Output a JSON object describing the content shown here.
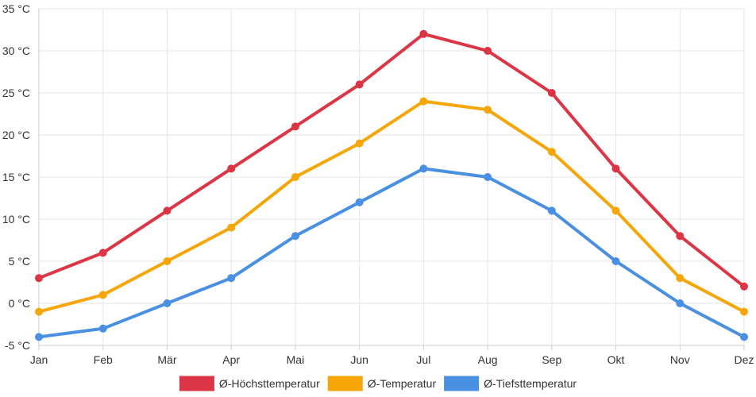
{
  "chart_data": {
    "type": "line",
    "categories": [
      "Jan",
      "Feb",
      "Mär",
      "Apr",
      "Mai",
      "Jun",
      "Jul",
      "Aug",
      "Sep",
      "Okt",
      "Nov",
      "Dez"
    ],
    "series": [
      {
        "name": "Ø-Höchsttemperatur",
        "color": "#dc3545",
        "values": [
          3,
          6,
          11,
          16,
          21,
          26,
          32,
          30,
          25,
          16,
          8,
          2
        ]
      },
      {
        "name": "Ø-Temperatur",
        "color": "#f6a609",
        "values": [
          -1,
          1,
          5,
          9,
          15,
          19,
          24,
          23,
          18,
          11,
          3,
          -1
        ]
      },
      {
        "name": "Ø-Tiefsttemperatur",
        "color": "#4a90e2",
        "values": [
          -4,
          -3,
          0,
          3,
          8,
          12,
          16,
          15,
          11,
          5,
          0,
          -4
        ]
      }
    ],
    "yticks": [
      "-5 °C",
      "0 °C",
      "5 °C",
      "10 °C",
      "15 °C",
      "20 °C",
      "25 °C",
      "30 °C",
      "35 °C"
    ],
    "ylim": [
      -5,
      35
    ],
    "ytick_step": 5,
    "grid": true,
    "legend_position": "bottom"
  }
}
